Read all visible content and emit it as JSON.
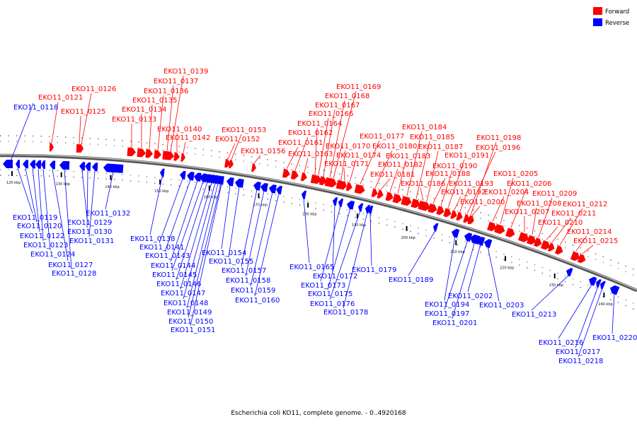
{
  "caption": "Escherichia coli KO11, complete genome. - 0..4920168",
  "legend": [
    {
      "label": "Forward",
      "color": "#ff0000"
    },
    {
      "label": "Reverse",
      "color": "#0000ff"
    }
  ],
  "colors": {
    "forward": "#ff0000",
    "reverse": "#0000ff",
    "backbone": "#7a7a7a"
  },
  "ticks": [
    "120 kbp",
    "130 kbp",
    "140 kbp",
    "150 kbp",
    "160 kbp",
    "170 kbp",
    "180 kbp",
    "190 kbp",
    "200 kbp",
    "210 kbp",
    "220 kbp",
    "230 kbp",
    "240 kbp"
  ],
  "forward_genes": [
    "EKO11_0121",
    "EKO11_0125",
    "EKO11_0126",
    "EKO11_0133",
    "EKO11_0134",
    "EKO11_0135",
    "EKO11_0136",
    "EKO11_0137",
    "EKO11_0139",
    "EKO11_0140",
    "EKO11_0142",
    "EKO11_0152",
    "EKO11_0153",
    "EKO11_0156",
    "EKO11_0161",
    "EKO11_0162",
    "EKO11_0163",
    "EKO11_0164",
    "EKO11_0166",
    "EKO11_0167",
    "EKO11_0168",
    "EKO11_0169",
    "EKO11_0170",
    "EKO11_0171",
    "EKO11_0174",
    "EKO11_0177",
    "EKO11_0180",
    "EKO11_0181",
    "EKO11_0182",
    "EKO11_0183",
    "EKO11_0184",
    "EKO11_0185",
    "EKO11_0186",
    "EKO11_0187",
    "EKO11_0188",
    "EKO11_0190",
    "EKO11_0191",
    "EKO11_0192",
    "EKO11_0193",
    "EKO11_0196",
    "EKO11_0198",
    "EKO11_0200",
    "EKO11_0204",
    "EKO11_0205",
    "EKO11_0206",
    "EKO11_0207",
    "EKO11_0208",
    "EKO11_0209",
    "EKO11_0210",
    "EKO11_0211",
    "EKO11_0212",
    "EKO11_0214",
    "EKO11_0215"
  ],
  "reverse_genes": [
    "EKO11_0118",
    "EKO11_0119",
    "EKO11_0120",
    "EKO11_0122",
    "EKO11_0123",
    "EKO11_0124",
    "EKO11_0127",
    "EKO11_0128",
    "EKO11_0129",
    "EKO11_0130",
    "EKO11_0131",
    "EKO11_0132",
    "EKO11_0138",
    "EKO11_0141",
    "EKO11_0143",
    "EKO11_0144",
    "EKO11_0145",
    "EKO11_0146",
    "EKO11_0147",
    "EKO11_0148",
    "EKO11_0149",
    "EKO11_0150",
    "EKO11_0151",
    "EKO11_0154",
    "EKO11_0155",
    "EKO11_0157",
    "EKO11_0158",
    "EKO11_0159",
    "EKO11_0160",
    "EKO11_0165",
    "EKO11_0172",
    "EKO11_0173",
    "EKO11_0175",
    "EKO11_0176",
    "EKO11_0178",
    "EKO11_0179",
    "EKO11_0189",
    "EKO11_0194",
    "EKO11_0197",
    "EKO11_0201",
    "EKO11_0202",
    "EKO11_0203",
    "EKO11_0213",
    "EKO11_0216",
    "EKO11_0217",
    "EKO11_0218",
    "EKO11_0220"
  ]
}
